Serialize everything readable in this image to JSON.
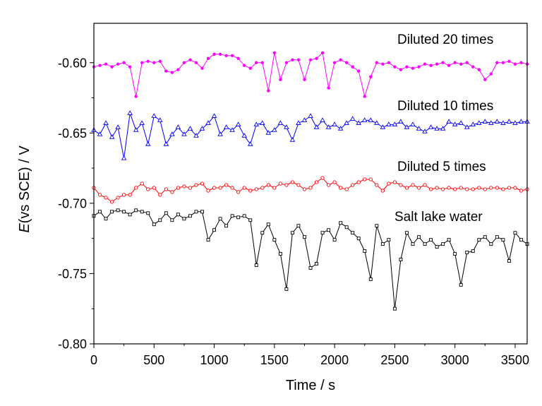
{
  "chart_data": {
    "type": "line",
    "xlabel": "Time / s",
    "ylabel": "E(vs SCE) / V",
    "xlim": [
      0,
      3600
    ],
    "ylim": [
      -0.8,
      -0.572
    ],
    "x_tick_labels": [
      "0",
      "500",
      "1000",
      "1500",
      "2000",
      "2500",
      "3000",
      "3500"
    ],
    "y_tick_labels": [
      "-0.80",
      "-0.75",
      "-0.70",
      "-0.65",
      "-0.60"
    ],
    "grid": false,
    "legend": "right",
    "x": [
      0,
      50,
      100,
      150,
      200,
      250,
      300,
      350,
      400,
      450,
      500,
      550,
      600,
      650,
      700,
      750,
      800,
      850,
      900,
      950,
      1000,
      1050,
      1100,
      1150,
      1200,
      1250,
      1300,
      1350,
      1400,
      1450,
      1500,
      1550,
      1600,
      1650,
      1700,
      1750,
      1800,
      1850,
      1900,
      1950,
      2000,
      2050,
      2100,
      2150,
      2200,
      2250,
      2300,
      2350,
      2400,
      2450,
      2500,
      2550,
      2600,
      2650,
      2700,
      2750,
      2800,
      2850,
      2900,
      2950,
      3000,
      3050,
      3100,
      3150,
      3200,
      3250,
      3300,
      3350,
      3400,
      3450,
      3500,
      3550,
      3600
    ],
    "series": [
      {
        "name": "Diluted 20 times",
        "color": "#FF00FF",
        "marker": "filled-circle",
        "values": [
          -0.603,
          -0.602,
          -0.601,
          -0.603,
          -0.601,
          -0.6,
          -0.603,
          -0.624,
          -0.6,
          -0.599,
          -0.6,
          -0.599,
          -0.606,
          -0.607,
          -0.605,
          -0.6,
          -0.598,
          -0.6,
          -0.604,
          -0.597,
          -0.594,
          -0.594,
          -0.595,
          -0.595,
          -0.597,
          -0.602,
          -0.604,
          -0.6,
          -0.6,
          -0.62,
          -0.593,
          -0.612,
          -0.6,
          -0.598,
          -0.598,
          -0.612,
          -0.598,
          -0.597,
          -0.593,
          -0.618,
          -0.6,
          -0.598,
          -0.6,
          -0.603,
          -0.606,
          -0.624,
          -0.61,
          -0.6,
          -0.601,
          -0.6,
          -0.603,
          -0.605,
          -0.603,
          -0.604,
          -0.603,
          -0.601,
          -0.602,
          -0.601,
          -0.6,
          -0.602,
          -0.6,
          -0.601,
          -0.6,
          -0.603,
          -0.605,
          -0.612,
          -0.608,
          -0.6,
          -0.6,
          -0.599,
          -0.601,
          -0.6,
          -0.601
        ]
      },
      {
        "name": "Diluted 10 times",
        "color": "#0000FF",
        "marker": "open-triangle",
        "values": [
          -0.648,
          -0.651,
          -0.643,
          -0.653,
          -0.646,
          -0.668,
          -0.636,
          -0.648,
          -0.643,
          -0.658,
          -0.638,
          -0.641,
          -0.658,
          -0.651,
          -0.646,
          -0.651,
          -0.647,
          -0.652,
          -0.647,
          -0.643,
          -0.638,
          -0.651,
          -0.646,
          -0.648,
          -0.644,
          -0.652,
          -0.658,
          -0.644,
          -0.643,
          -0.65,
          -0.648,
          -0.643,
          -0.646,
          -0.655,
          -0.643,
          -0.641,
          -0.638,
          -0.646,
          -0.641,
          -0.646,
          -0.644,
          -0.647,
          -0.643,
          -0.64,
          -0.643,
          -0.641,
          -0.641,
          -0.643,
          -0.646,
          -0.644,
          -0.644,
          -0.642,
          -0.646,
          -0.644,
          -0.647,
          -0.649,
          -0.646,
          -0.647,
          -0.647,
          -0.642,
          -0.644,
          -0.643,
          -0.646,
          -0.644,
          -0.643,
          -0.642,
          -0.643,
          -0.642,
          -0.643,
          -0.642,
          -0.643,
          -0.642,
          -0.642
        ]
      },
      {
        "name": "Diluted 5 times",
        "color": "#FF0000",
        "marker": "open-circle",
        "values": [
          -0.689,
          -0.694,
          -0.696,
          -0.699,
          -0.696,
          -0.694,
          -0.694,
          -0.689,
          -0.686,
          -0.69,
          -0.689,
          -0.694,
          -0.69,
          -0.692,
          -0.689,
          -0.688,
          -0.689,
          -0.687,
          -0.686,
          -0.691,
          -0.689,
          -0.689,
          -0.687,
          -0.689,
          -0.692,
          -0.689,
          -0.691,
          -0.69,
          -0.689,
          -0.687,
          -0.689,
          -0.686,
          -0.687,
          -0.685,
          -0.687,
          -0.69,
          -0.689,
          -0.685,
          -0.682,
          -0.687,
          -0.685,
          -0.689,
          -0.69,
          -0.687,
          -0.685,
          -0.683,
          -0.683,
          -0.687,
          -0.691,
          -0.686,
          -0.685,
          -0.687,
          -0.689,
          -0.687,
          -0.689,
          -0.687,
          -0.69,
          -0.689,
          -0.69,
          -0.689,
          -0.69,
          -0.689,
          -0.69,
          -0.69,
          -0.689,
          -0.69,
          -0.689,
          -0.689,
          -0.69,
          -0.689,
          -0.689,
          -0.691,
          -0.69
        ]
      },
      {
        "name": "Salt lake water",
        "color": "#000000",
        "marker": "open-square",
        "values": [
          -0.709,
          -0.706,
          -0.711,
          -0.706,
          -0.705,
          -0.706,
          -0.708,
          -0.705,
          -0.706,
          -0.707,
          -0.715,
          -0.712,
          -0.707,
          -0.712,
          -0.708,
          -0.711,
          -0.709,
          -0.706,
          -0.706,
          -0.726,
          -0.719,
          -0.711,
          -0.716,
          -0.709,
          -0.71,
          -0.709,
          -0.712,
          -0.744,
          -0.721,
          -0.715,
          -0.726,
          -0.736,
          -0.761,
          -0.721,
          -0.716,
          -0.724,
          -0.746,
          -0.743,
          -0.721,
          -0.719,
          -0.726,
          -0.714,
          -0.717,
          -0.721,
          -0.725,
          -0.734,
          -0.754,
          -0.716,
          -0.729,
          -0.726,
          -0.775,
          -0.74,
          -0.721,
          -0.729,
          -0.724,
          -0.729,
          -0.726,
          -0.731,
          -0.729,
          -0.726,
          -0.736,
          -0.758,
          -0.735,
          -0.734,
          -0.726,
          -0.724,
          -0.729,
          -0.724,
          -0.726,
          -0.741,
          -0.721,
          -0.726,
          -0.729
        ]
      }
    ]
  }
}
